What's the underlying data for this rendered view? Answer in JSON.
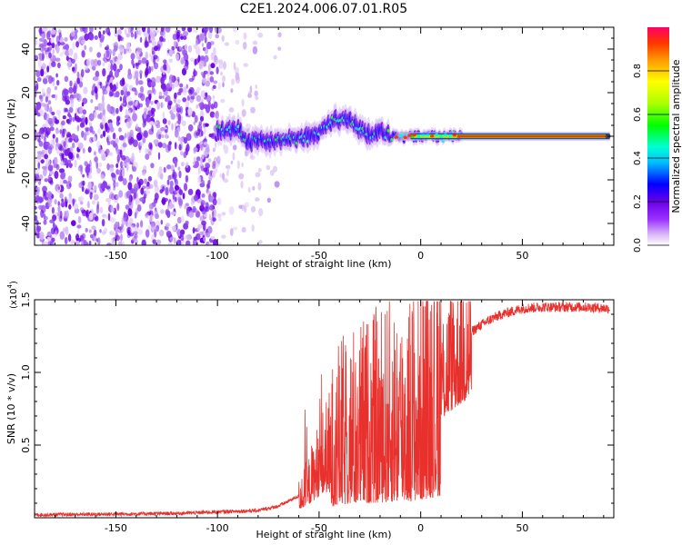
{
  "figure": {
    "title": "C2E1.2024.006.07.01.R05"
  },
  "chart_data": [
    {
      "type": "heatmap",
      "title": "",
      "xlabel": "Height of straight line (km)",
      "ylabel": "Frequency (Hz)",
      "xlim": [
        -190,
        95
      ],
      "ylim": [
        -50,
        50
      ],
      "x_ticks": [
        -150,
        -100,
        -50,
        0,
        50
      ],
      "y_ticks": [
        -40,
        -20,
        0,
        20,
        40
      ],
      "colorbar": {
        "label": "Normalized spectral amplitude",
        "range": [
          0,
          1
        ],
        "ticks": [
          0.0,
          0.2,
          0.4,
          0.6,
          0.8
        ],
        "colors": [
          "#ffffff",
          "#d9b8f5",
          "#9b30ff",
          "#6a00e8",
          "#0000ff",
          "#00bfff",
          "#00ffd5",
          "#00ff00",
          "#aaff00",
          "#ffff00",
          "#ff9900",
          "#ff3300",
          "#ff0066"
        ]
      },
      "noise_region_x": [
        -190,
        -65
      ],
      "trace_centerline": [
        {
          "x": -100,
          "y": 3
        },
        {
          "x": -95,
          "y": 2
        },
        {
          "x": -90,
          "y": 4
        },
        {
          "x": -85,
          "y": -3
        },
        {
          "x": -80,
          "y": -1
        },
        {
          "x": -75,
          "y": -2
        },
        {
          "x": -70,
          "y": -2
        },
        {
          "x": -65,
          "y": -1
        },
        {
          "x": -60,
          "y": -1
        },
        {
          "x": -55,
          "y": 0
        },
        {
          "x": -50,
          "y": 2
        },
        {
          "x": -45,
          "y": 6
        },
        {
          "x": -40,
          "y": 8
        },
        {
          "x": -35,
          "y": 7
        },
        {
          "x": -30,
          "y": 3
        },
        {
          "x": -25,
          "y": 1
        },
        {
          "x": -20,
          "y": 2
        },
        {
          "x": -15,
          "y": 0
        },
        {
          "x": -10,
          "y": -1
        },
        {
          "x": -5,
          "y": 0
        },
        {
          "x": 0,
          "y": 0
        },
        {
          "x": 10,
          "y": 0
        },
        {
          "x": 20,
          "y": 0
        },
        {
          "x": 50,
          "y": 0
        },
        {
          "x": 93,
          "y": 0
        }
      ]
    },
    {
      "type": "line",
      "title": "",
      "xlabel": "Height of straight line (km)",
      "ylabel": "SNR (10 * v/v)",
      "y_multiplier_label": "(x10",
      "y_multiplier_exp": "4",
      "y_multiplier_close": ")",
      "xlim": [
        -190,
        95
      ],
      "ylim": [
        0,
        15000
      ],
      "x_ticks": [
        -150,
        -100,
        -50,
        0,
        50
      ],
      "y_ticks": [
        5000,
        10000,
        15000
      ],
      "y_tick_labels": [
        "0.5",
        "1.0",
        "1.5"
      ],
      "series": [
        {
          "color": "#e8302c",
          "envelope_x": [
            -190,
            -150,
            -120,
            -100,
            -80,
            -70,
            -60,
            -55,
            -50,
            -45,
            -40,
            -35,
            -30,
            -25,
            -20,
            -15,
            -10,
            -5,
            0,
            5,
            10,
            15,
            20,
            25,
            30,
            35,
            40,
            50,
            60,
            70,
            80,
            93
          ],
          "envelope_y": [
            200,
            250,
            300,
            400,
            500,
            800,
            1500,
            2500,
            4000,
            5000,
            6000,
            6500,
            6800,
            7000,
            7200,
            7500,
            7800,
            8000,
            8500,
            9500,
            10500,
            11500,
            12300,
            12800,
            13300,
            13700,
            14000,
            14400,
            14500,
            14500,
            14500,
            14400
          ]
        }
      ]
    }
  ]
}
